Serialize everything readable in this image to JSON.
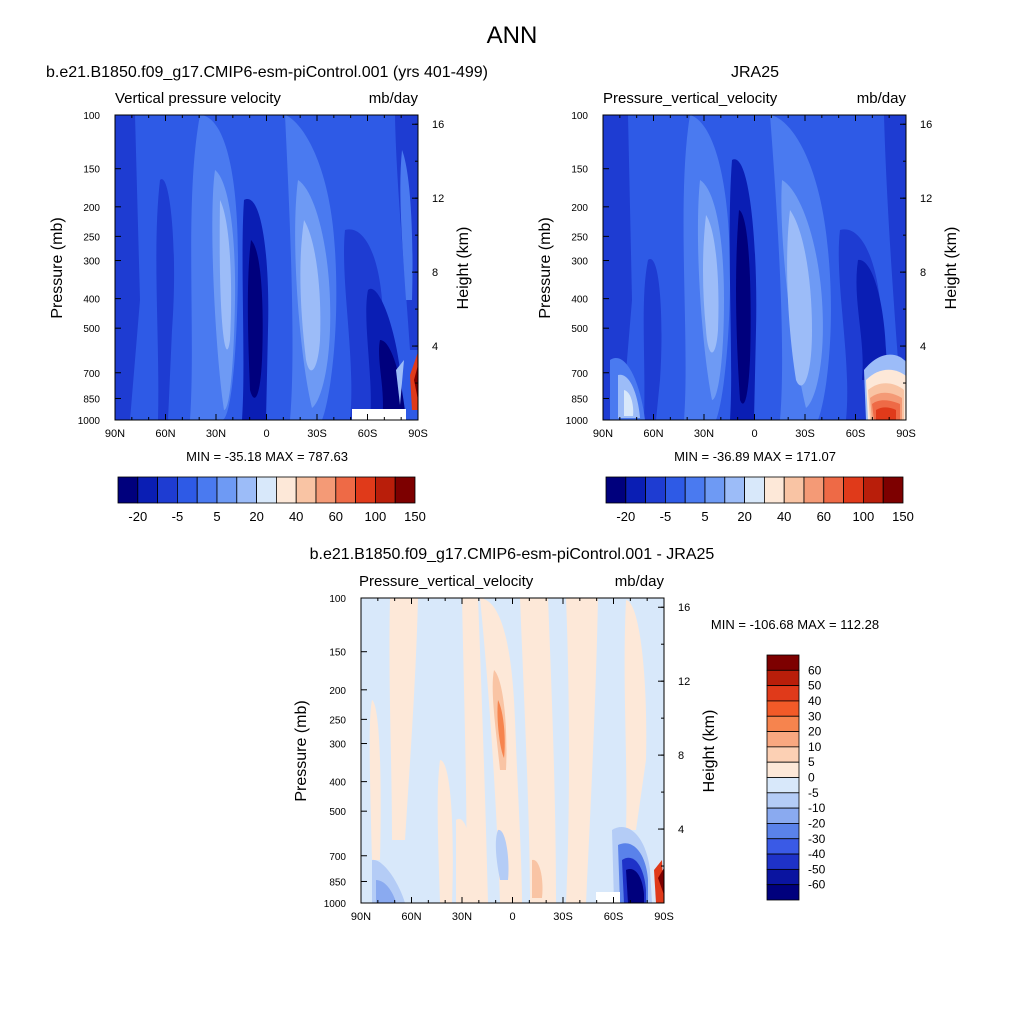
{
  "figure": {
    "title": "ANN",
    "min_max_format": "MIN = {min}  MAX = {max}"
  },
  "chart_data": [
    {
      "type": "heatmap",
      "title": "b.e21.B1850.f09_g17.CMIP6-esm-piControl.001 (yrs 401-499)",
      "subtitle_left": "Vertical pressure velocity",
      "subtitle_right": "mb/day",
      "ylabel": "Pressure (mb)",
      "ylabel_right": "Height (km)",
      "x_ticks": [
        "90N",
        "60N",
        "30N",
        "0",
        "30S",
        "60S",
        "90S"
      ],
      "y_ticks": [
        100,
        150,
        200,
        250,
        300,
        400,
        500,
        700,
        850,
        1000
      ],
      "y_scale": "log",
      "ylim": [
        1000,
        100
      ],
      "height_ticks": [
        16,
        12,
        8,
        4
      ],
      "min": -35.18,
      "max": 787.63,
      "colorbar": {
        "orientation": "horizontal",
        "labels": [
          "-20",
          "-5",
          "5",
          "20",
          "40",
          "60",
          "100",
          "150"
        ],
        "colors": [
          "#00007d",
          "#0a1eb4",
          "#1e3cd2",
          "#2e5ae6",
          "#4a7af0",
          "#6e9af4",
          "#9cbcf8",
          "#d8e8fa",
          "#fde8d8",
          "#f9c4a4",
          "#f49a76",
          "#ee6a46",
          "#e03a1a",
          "#b91e0a",
          "#7d0000"
        ]
      },
      "pattern": "background ~-15 mb/day across all latitudes; weak downward (lighter blue) bands near 35N and 25S; strong upward (dark blue) ITCZ column near 8N; dark blue at 70S below 400 mb; red positive values near 85S at 700-1000 mb; missing values (white) near 60S-80S at 1000 mb"
    },
    {
      "type": "heatmap",
      "title": "JRA25",
      "subtitle_left": "Pressure_vertical_velocity",
      "subtitle_right": "mb/day",
      "ylabel": "Pressure (mb)",
      "ylabel_right": "Height (km)",
      "x_ticks": [
        "90N",
        "60N",
        "30N",
        "0",
        "30S",
        "60S",
        "90S"
      ],
      "y_ticks": [
        100,
        150,
        200,
        250,
        300,
        400,
        500,
        700,
        850,
        1000
      ],
      "y_scale": "log",
      "ylim": [
        1000,
        100
      ],
      "height_ticks": [
        16,
        12,
        8,
        4
      ],
      "min": -36.89,
      "max": 171.07,
      "colorbar": {
        "orientation": "horizontal",
        "labels": [
          "-20",
          "-5",
          "5",
          "20",
          "40",
          "60",
          "100",
          "150"
        ],
        "colors": [
          "#00007d",
          "#0a1eb4",
          "#1e3cd2",
          "#2e5ae6",
          "#4a7af0",
          "#6e9af4",
          "#9cbcf8",
          "#d8e8fa",
          "#fde8d8",
          "#f9c4a4",
          "#f49a76",
          "#ee6a46",
          "#e03a1a",
          "#b91e0a",
          "#7d0000"
        ]
      },
      "pattern": "background ~-15 mb/day; lighter bands near 30N and 25S; strong ITCZ column near 8N; light blue near 85N at 700-1000 mb; red positive values 65S-90S at 600-1000 mb"
    },
    {
      "type": "heatmap",
      "title": "b.e21.B1850.f09_g17.CMIP6-esm-piControl.001 - JRA25",
      "subtitle_left": "Pressure_vertical_velocity",
      "subtitle_right": "mb/day",
      "ylabel": "Pressure (mb)",
      "ylabel_right": "Height (km)",
      "x_ticks": [
        "90N",
        "60N",
        "30N",
        "0",
        "30S",
        "60S",
        "90S"
      ],
      "y_ticks": [
        100,
        150,
        200,
        250,
        300,
        400,
        500,
        700,
        850,
        1000
      ],
      "y_scale": "log",
      "ylim": [
        1000,
        100
      ],
      "height_ticks": [
        16,
        12,
        8,
        4
      ],
      "min": -106.68,
      "max": 112.28,
      "colorbar": {
        "orientation": "vertical",
        "labels": [
          "60",
          "50",
          "40",
          "30",
          "20",
          "10",
          "5",
          "0",
          "-5",
          "-10",
          "-20",
          "-30",
          "-40",
          "-50",
          "-60"
        ],
        "colors": [
          "#7d0000",
          "#b91e0a",
          "#e03a1a",
          "#f25a28",
          "#f6844e",
          "#f9a880",
          "#fcd0b4",
          "#fde8d8",
          "#d8e8fa",
          "#b4ccf6",
          "#8aaaf0",
          "#5a82ea",
          "#3a5ae6",
          "#1e32c8",
          "#0a14a0",
          "#00007d"
        ]
      },
      "pattern": "difference mostly between -5 and 5; positive (light orange) columns near 75N, 5N-30N and 35S-45S; 10-20 maximum near 10N at 250-400 mb; -10 to -60 near 65S-85S at 700-1000 mb; small positive near 90S; missing values near 60S at 1000 mb"
    }
  ]
}
